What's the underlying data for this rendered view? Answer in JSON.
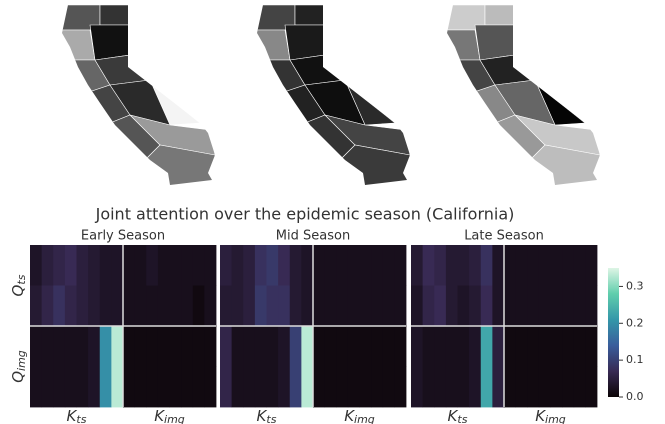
{
  "chart_data": {
    "type": "heatmap",
    "title": "Joint attention over the epidemic season (California)",
    "panels": [
      {
        "title": "Early Season",
        "z": [
          [
            0.03,
            0.05,
            0.06,
            0.07,
            0.05,
            0.04,
            0.03,
            0.03,
            0.02,
            0.02,
            0.03,
            0.02,
            0.02,
            0.02,
            0.02,
            0.02
          ],
          [
            0.04,
            0.06,
            0.08,
            0.06,
            0.05,
            0.04,
            0.03,
            0.03,
            0.02,
            0.02,
            0.02,
            0.02,
            0.02,
            0.02,
            0.01,
            0.02
          ],
          [
            0.02,
            0.02,
            0.02,
            0.02,
            0.02,
            0.03,
            0.2,
            0.33,
            0.01,
            0.01,
            0.01,
            0.01,
            0.01,
            0.01,
            0.01,
            0.01
          ],
          [
            0.02,
            0.02,
            0.02,
            0.02,
            0.02,
            0.03,
            0.2,
            0.33,
            0.01,
            0.01,
            0.01,
            0.01,
            0.01,
            0.01,
            0.01,
            0.01
          ]
        ]
      },
      {
        "title": "Mid Season",
        "z": [
          [
            0.05,
            0.04,
            0.05,
            0.08,
            0.09,
            0.07,
            0.04,
            0.03,
            0.02,
            0.02,
            0.02,
            0.02,
            0.02,
            0.02,
            0.02,
            0.02
          ],
          [
            0.04,
            0.04,
            0.05,
            0.09,
            0.08,
            0.08,
            0.04,
            0.03,
            0.02,
            0.02,
            0.02,
            0.02,
            0.02,
            0.02,
            0.02,
            0.02
          ],
          [
            0.06,
            0.02,
            0.02,
            0.02,
            0.02,
            0.03,
            0.1,
            0.33,
            0.01,
            0.01,
            0.01,
            0.01,
            0.01,
            0.01,
            0.01,
            0.01
          ],
          [
            0.06,
            0.02,
            0.02,
            0.02,
            0.02,
            0.03,
            0.1,
            0.33,
            0.01,
            0.01,
            0.01,
            0.01,
            0.01,
            0.01,
            0.01,
            0.01
          ]
        ]
      },
      {
        "title": "Late Season",
        "z": [
          [
            0.04,
            0.07,
            0.06,
            0.04,
            0.04,
            0.05,
            0.08,
            0.03,
            0.02,
            0.02,
            0.02,
            0.02,
            0.02,
            0.02,
            0.02,
            0.02
          ],
          [
            0.03,
            0.06,
            0.07,
            0.04,
            0.03,
            0.04,
            0.07,
            0.03,
            0.02,
            0.02,
            0.02,
            0.02,
            0.02,
            0.02,
            0.02,
            0.02
          ],
          [
            0.03,
            0.02,
            0.02,
            0.02,
            0.02,
            0.03,
            0.23,
            0.05,
            0.01,
            0.01,
            0.01,
            0.01,
            0.01,
            0.01,
            0.01,
            0.01
          ],
          [
            0.03,
            0.02,
            0.02,
            0.02,
            0.02,
            0.03,
            0.23,
            0.05,
            0.01,
            0.01,
            0.01,
            0.01,
            0.01,
            0.01,
            0.01,
            0.01
          ]
        ]
      }
    ],
    "row_groups": [
      {
        "symbol": "Q",
        "subscript": "ts"
      },
      {
        "symbol": "Q",
        "subscript": "img"
      }
    ],
    "col_groups": [
      {
        "symbol": "K",
        "subscript": "ts"
      },
      {
        "symbol": "K",
        "subscript": "img"
      }
    ],
    "colorscale": [
      "#0b0405",
      "#382a54",
      "#395d9c",
      "#3497a9",
      "#60ceac",
      "#def5e5"
    ],
    "zlim": [
      0,
      0.35
    ],
    "zticks": [
      {
        "value": 0,
        "label": "0.0"
      },
      0.1,
      0.2,
      0.3
    ]
  }
}
